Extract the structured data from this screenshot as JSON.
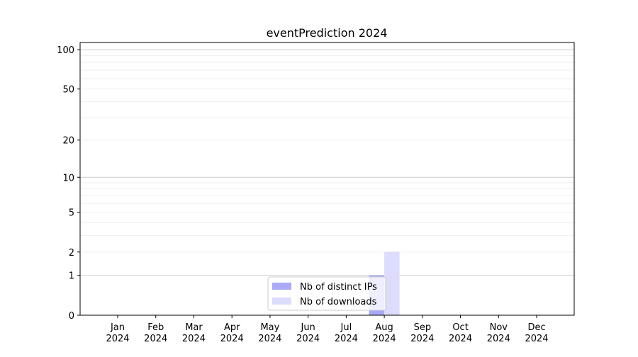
{
  "chart_data": {
    "type": "bar",
    "title": "eventPrediction 2024",
    "xlabel": "",
    "ylabel": "",
    "y_scale": "log10(1+y)",
    "ylim": [
      0,
      113
    ],
    "yticks": [
      0,
      1,
      2,
      5,
      10,
      20,
      50,
      100
    ],
    "grid": true,
    "legend_position": "bottom-center",
    "categories": [
      "Jan\n2024",
      "Feb\n2024",
      "Mar\n2024",
      "Apr\n2024",
      "May\n2024",
      "Jun\n2024",
      "Jul\n2024",
      "Aug\n2024",
      "Sep\n2024",
      "Oct\n2024",
      "Nov\n2024",
      "Dec\n2024"
    ],
    "series": [
      {
        "name": "Nb of distinct IPs",
        "color": "#aaaaf8",
        "values": [
          0,
          0,
          0,
          0,
          0,
          0,
          0,
          1,
          0,
          0,
          0,
          0
        ]
      },
      {
        "name": "Nb of downloads",
        "color": "#dcdcfc",
        "values": [
          0,
          0,
          0,
          0,
          0,
          0,
          0,
          2,
          0,
          0,
          0,
          0
        ]
      }
    ]
  }
}
